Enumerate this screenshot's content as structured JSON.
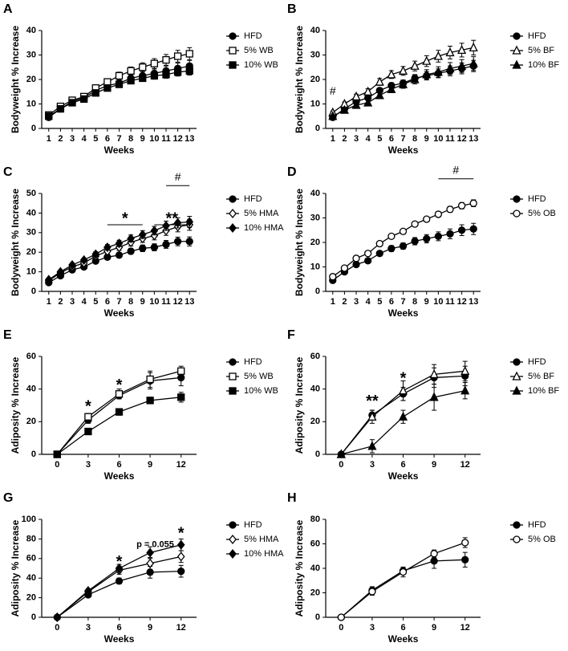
{
  "chart_data": [
    {
      "type": "line",
      "label": "A",
      "xlabel": "Weeks",
      "ylabel": "Bodyweight % Increase",
      "x": [
        1,
        2,
        3,
        4,
        5,
        6,
        7,
        8,
        9,
        10,
        11,
        12,
        13
      ],
      "xlim": [
        0.4,
        13.6
      ],
      "xticks": [
        1,
        2,
        3,
        4,
        5,
        6,
        7,
        8,
        9,
        10,
        11,
        12,
        13
      ],
      "ylim": [
        0,
        40
      ],
      "yticks": [
        0,
        10,
        20,
        30,
        40
      ],
      "series": [
        {
          "name": "HFD",
          "color": "#000",
          "marker": "circle",
          "filled": true,
          "values": [
            4.5,
            8,
            11,
            12.5,
            15.5,
            17.5,
            18.5,
            20.5,
            21.5,
            22.5,
            23.5,
            24.5,
            25.5
          ],
          "errors": [
            0.5,
            0.7,
            0.8,
            1,
            1,
            1.2,
            1.3,
            1.5,
            1.7,
            1.8,
            2,
            2.2,
            2.3
          ]
        },
        {
          "name": "5% WB",
          "color": "#000",
          "marker": "square",
          "filled": false,
          "values": [
            5.5,
            9,
            11.5,
            13,
            16.5,
            19,
            21.5,
            23.5,
            25,
            26.5,
            28,
            29.5,
            30.5
          ],
          "errors": [
            0.6,
            0.8,
            0.9,
            1,
            1.1,
            1.3,
            1.5,
            1.6,
            1.8,
            2,
            2.2,
            2.4,
            2.5
          ]
        },
        {
          "name": "10% WB",
          "color": "#000",
          "marker": "square",
          "filled": true,
          "values": [
            5,
            8,
            10.5,
            12,
            14.5,
            16.5,
            18,
            19.5,
            20.5,
            21.5,
            22,
            23,
            23.5
          ],
          "errors": [
            0.5,
            0.6,
            0.7,
            0.8,
            0.9,
            1,
            1.1,
            1.2,
            1.3,
            1.4,
            1.5,
            1.6,
            1.7
          ]
        }
      ],
      "annotations": []
    },
    {
      "type": "line",
      "label": "B",
      "xlabel": "Weeks",
      "ylabel": "Bodyweight % Increase",
      "x": [
        1,
        2,
        3,
        4,
        5,
        6,
        7,
        8,
        9,
        10,
        11,
        12,
        13
      ],
      "xlim": [
        0.4,
        13.6
      ],
      "xticks": [
        1,
        2,
        3,
        4,
        5,
        6,
        7,
        8,
        9,
        10,
        11,
        12,
        13
      ],
      "ylim": [
        0,
        40
      ],
      "yticks": [
        0,
        10,
        20,
        30,
        40
      ],
      "series": [
        {
          "name": "HFD",
          "color": "#000",
          "marker": "circle",
          "filled": true,
          "values": [
            4.5,
            8,
            11,
            12.5,
            15.5,
            17.5,
            18.5,
            20.5,
            21.5,
            22.5,
            23.5,
            24.5,
            25.5
          ],
          "errors": [
            0.5,
            0.7,
            0.8,
            1,
            1,
            1.2,
            1.3,
            1.5,
            1.7,
            1.8,
            2,
            2.2,
            2.3
          ]
        },
        {
          "name": "5% BF",
          "color": "#000",
          "marker": "triangle",
          "filled": false,
          "values": [
            6.5,
            10,
            13,
            15,
            19,
            22,
            23.5,
            25.5,
            27.5,
            29.5,
            31,
            32,
            33
          ],
          "errors": [
            0.6,
            0.8,
            1,
            1.2,
            1.4,
            1.6,
            1.8,
            2,
            2.2,
            2.4,
            2.6,
            2.8,
            3
          ]
        },
        {
          "name": "10% BF",
          "color": "#000",
          "marker": "triangle",
          "filled": true,
          "values": [
            5,
            7.5,
            9.5,
            10.5,
            13.5,
            16,
            18,
            20,
            22,
            23,
            24.5,
            25.5,
            26.5
          ],
          "errors": [
            0.5,
            0.7,
            0.9,
            1,
            1.2,
            1.4,
            1.6,
            1.8,
            2,
            2.2,
            2.4,
            2.6,
            2.8
          ]
        }
      ],
      "annotations": [
        {
          "text": "#",
          "x": 1,
          "y": 15
        }
      ]
    },
    {
      "type": "line",
      "label": "C",
      "xlabel": "Weeks",
      "ylabel": "Bodyweight % Increase",
      "x": [
        1,
        2,
        3,
        4,
        5,
        6,
        7,
        8,
        9,
        10,
        11,
        12,
        13
      ],
      "xlim": [
        0.4,
        13.6
      ],
      "xticks": [
        1,
        2,
        3,
        4,
        5,
        6,
        7,
        8,
        9,
        10,
        11,
        12,
        13
      ],
      "ylim": [
        0,
        50
      ],
      "yticks": [
        0,
        10,
        20,
        30,
        40,
        50
      ],
      "series": [
        {
          "name": "HFD",
          "color": "#000",
          "marker": "circle",
          "filled": true,
          "values": [
            4.5,
            8,
            11,
            12.5,
            15.5,
            17.5,
            18.5,
            20.5,
            22,
            22.5,
            24,
            25.5,
            25.5
          ],
          "errors": [
            0.5,
            0.7,
            0.8,
            1,
            1,
            1.2,
            1.3,
            1.5,
            1.7,
            1.8,
            2,
            2.2,
            2.3
          ]
        },
        {
          "name": "5% HMA",
          "color": "#000",
          "marker": "diamond",
          "filled": false,
          "values": [
            5.5,
            9.5,
            12.5,
            14.5,
            18,
            20.5,
            22.5,
            25,
            27,
            28.5,
            31,
            33,
            34
          ],
          "errors": [
            0.6,
            0.8,
            0.9,
            1,
            1.2,
            1.4,
            1.6,
            1.8,
            2,
            2.2,
            2.4,
            2.6,
            2.8
          ]
        },
        {
          "name": "10% HMA",
          "color": "#000",
          "marker": "diamond",
          "filled": true,
          "values": [
            6,
            10,
            13.5,
            16,
            19,
            22.5,
            24.5,
            27,
            29,
            31,
            33.5,
            35,
            35.5
          ],
          "errors": [
            0.6,
            0.8,
            0.9,
            1,
            1.2,
            1.4,
            1.6,
            1.8,
            2,
            2.2,
            2.4,
            2.6,
            2.8
          ]
        }
      ],
      "annotations": [
        {
          "text": "*",
          "x_range": [
            6,
            9
          ],
          "y": 34
        },
        {
          "text": "**",
          "x_range": [
            10,
            13
          ],
          "y": 34
        },
        {
          "text": "#",
          "x_range": [
            11,
            13
          ],
          "y": 54
        }
      ]
    },
    {
      "type": "line",
      "label": "D",
      "xlabel": "Weeks",
      "ylabel": "Bodyweight % Increase",
      "x": [
        1,
        2,
        3,
        4,
        5,
        6,
        7,
        8,
        9,
        10,
        11,
        12,
        13
      ],
      "xlim": [
        0.4,
        13.6
      ],
      "xticks": [
        1,
        2,
        3,
        4,
        5,
        6,
        7,
        8,
        9,
        10,
        11,
        12,
        13
      ],
      "ylim": [
        0,
        40
      ],
      "yticks": [
        0,
        10,
        20,
        30,
        40
      ],
      "series": [
        {
          "name": "HFD",
          "color": "#000",
          "marker": "circle",
          "filled": true,
          "values": [
            4.5,
            8,
            11,
            12.5,
            15.5,
            17.5,
            18.5,
            20.5,
            21.5,
            22.5,
            23.5,
            25,
            25.5
          ],
          "errors": [
            0.5,
            0.7,
            0.8,
            1,
            1,
            1.2,
            1.3,
            1.5,
            1.7,
            1.8,
            2,
            2.2,
            2.3
          ]
        },
        {
          "name": "5% OB",
          "color": "#000",
          "marker": "circle",
          "filled": false,
          "values": [
            6,
            9.5,
            13.5,
            15.5,
            19.5,
            22.5,
            24.5,
            27.5,
            29.5,
            31.5,
            33.5,
            35,
            36
          ],
          "errors": [
            0.4,
            0.5,
            0.6,
            0.7,
            0.8,
            0.8,
            0.9,
            1,
            1,
            1.1,
            1.2,
            1.3,
            1.4
          ]
        }
      ],
      "annotations": [
        {
          "text": "#",
          "x_range": [
            10,
            13
          ],
          "y": 46
        }
      ]
    },
    {
      "type": "line",
      "label": "E",
      "xlabel": "Weeks",
      "ylabel": "Adiposity % Increase",
      "x": [
        0,
        3,
        6,
        9,
        12
      ],
      "xlim": [
        -1.5,
        13.5
      ],
      "xticks": [
        0,
        3,
        6,
        9,
        12
      ],
      "ylim": [
        0,
        60
      ],
      "yticks": [
        0,
        20,
        40,
        60
      ],
      "series": [
        {
          "name": "HFD",
          "color": "#000",
          "marker": "circle",
          "filled": true,
          "values": [
            0,
            21,
            36,
            45,
            47
          ],
          "errors": [
            0,
            2,
            2,
            5,
            5
          ]
        },
        {
          "name": "5% WB",
          "color": "#000",
          "marker": "square",
          "filled": false,
          "values": [
            0,
            23,
            37,
            46,
            51
          ],
          "errors": [
            0,
            2,
            3,
            5,
            3
          ]
        },
        {
          "name": "10% WB",
          "color": "#000",
          "marker": "square",
          "filled": true,
          "values": [
            0,
            14,
            26,
            33,
            35
          ],
          "errors": [
            0,
            1,
            2,
            2,
            3
          ]
        }
      ],
      "annotations": [
        {
          "text": "*",
          "x": 3,
          "y": 29
        },
        {
          "text": "*",
          "x": 6,
          "y": 42
        }
      ]
    },
    {
      "type": "line",
      "label": "F",
      "xlabel": "Weeks",
      "ylabel": "Adiposity % Increase",
      "x": [
        0,
        3,
        6,
        9,
        12
      ],
      "xlim": [
        -1.5,
        13.5
      ],
      "xticks": [
        0,
        3,
        6,
        9,
        12
      ],
      "ylim": [
        0,
        60
      ],
      "yticks": [
        0,
        20,
        40,
        60
      ],
      "series": [
        {
          "name": "HFD",
          "color": "#000",
          "marker": "circle",
          "filled": true,
          "values": [
            0,
            24,
            37,
            47,
            48
          ],
          "errors": [
            0,
            3,
            4,
            6,
            6
          ]
        },
        {
          "name": "5% BF",
          "color": "#000",
          "marker": "triangle",
          "filled": false,
          "values": [
            0,
            23,
            39,
            49,
            51
          ],
          "errors": [
            0,
            4,
            6,
            6,
            6
          ]
        },
        {
          "name": "10% BF",
          "color": "#000",
          "marker": "triangle",
          "filled": true,
          "values": [
            0,
            5,
            23,
            35,
            39
          ],
          "errors": [
            0,
            4,
            4,
            8,
            5
          ]
        }
      ],
      "annotations": [
        {
          "text": "**",
          "x": 3,
          "y": 32
        },
        {
          "text": "*",
          "x": 6,
          "y": 46
        }
      ]
    },
    {
      "type": "line",
      "label": "G",
      "xlabel": "Weeks",
      "ylabel": "Adiposity % Increase",
      "x": [
        0,
        3,
        6,
        9,
        12
      ],
      "xlim": [
        -1.5,
        13.5
      ],
      "xticks": [
        0,
        3,
        6,
        9,
        12
      ],
      "ylim": [
        0,
        100
      ],
      "yticks": [
        0,
        20,
        40,
        60,
        80,
        100
      ],
      "series": [
        {
          "name": "HFD",
          "color": "#000",
          "marker": "circle",
          "filled": true,
          "values": [
            0,
            23,
            37,
            46,
            47
          ],
          "errors": [
            0,
            2,
            3,
            6,
            6
          ]
        },
        {
          "name": "5% HMA",
          "color": "#000",
          "marker": "diamond",
          "filled": false,
          "values": [
            0,
            26,
            48,
            55,
            62
          ],
          "errors": [
            0,
            2,
            4,
            6,
            6
          ]
        },
        {
          "name": "10% HMA",
          "color": "#000",
          "marker": "diamond",
          "filled": true,
          "values": [
            0,
            27,
            50,
            66,
            74
          ],
          "errors": [
            0,
            2,
            4,
            6,
            6
          ]
        }
      ],
      "annotations": [
        {
          "text": "*",
          "x": 6,
          "y": 56
        },
        {
          "text": "p = 0.055",
          "x": 9.5,
          "y": 74
        },
        {
          "text": "*",
          "x": 12,
          "y": 85
        }
      ]
    },
    {
      "type": "line",
      "label": "H",
      "xlabel": "Weeks",
      "ylabel": "Adiposity % Increase",
      "x": [
        0,
        3,
        6,
        9,
        12
      ],
      "xlim": [
        -1.5,
        13.5
      ],
      "xticks": [
        0,
        3,
        6,
        9,
        12
      ],
      "ylim": [
        0,
        80
      ],
      "yticks": [
        0,
        20,
        40,
        60,
        80
      ],
      "series": [
        {
          "name": "HFD",
          "color": "#000",
          "marker": "circle",
          "filled": true,
          "values": [
            0,
            22,
            38,
            46,
            47
          ],
          "errors": [
            0,
            3,
            3,
            6,
            6
          ]
        },
        {
          "name": "5% OB",
          "color": "#000",
          "marker": "circle",
          "filled": false,
          "values": [
            0,
            21,
            37,
            52,
            61
          ],
          "errors": [
            0,
            3,
            4,
            3,
            4
          ]
        }
      ],
      "annotations": []
    }
  ]
}
